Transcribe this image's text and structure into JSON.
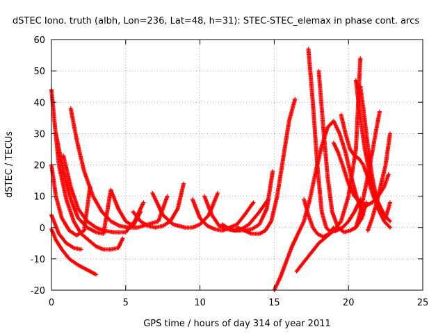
{
  "chart_data": {
    "type": "scatter",
    "title": "dSTEC Iono. truth (albh, Lon=236, Lat=48, h=31): STEC-STEC_elemax in phase cont. arcs",
    "xlabel": "GPS time / hours of day 314 of year 2011",
    "ylabel": "dSTEC  / TECUs",
    "xlim": [
      0,
      25
    ],
    "ylim": [
      -20,
      60
    ],
    "xticks": [
      0,
      5,
      10,
      15,
      20,
      25
    ],
    "yticks": [
      -20,
      -10,
      0,
      10,
      20,
      30,
      40,
      50,
      60
    ],
    "grid": true,
    "marker": "+",
    "color": "#ff0000",
    "series": [
      {
        "x": [
          0.0,
          0.3,
          0.7,
          1.2,
          1.8,
          2.4,
          3.0
        ],
        "y": [
          -0.5,
          -4,
          -7,
          -10,
          -12,
          -13.5,
          -15
        ]
      },
      {
        "x": [
          0.0,
          0.5,
          1.0,
          1.5,
          2.0
        ],
        "y": [
          4,
          -2,
          -5,
          -6.5,
          -7
        ]
      },
      {
        "x": [
          0.0,
          0.2,
          0.5,
          1.0,
          1.5,
          2.0,
          2.5,
          3.0,
          3.5,
          4.0,
          4.5,
          4.8
        ],
        "y": [
          44,
          34,
          20,
          9,
          2,
          -2,
          -4,
          -6,
          -7,
          -7,
          -6.5,
          -3.5
        ]
      },
      {
        "x": [
          0.0,
          0.3,
          0.7,
          1.2,
          1.7,
          2.2,
          2.6
        ],
        "y": [
          20,
          10,
          3,
          -1,
          -2.5,
          -1,
          13
        ]
      },
      {
        "x": [
          0.3,
          0.8,
          1.3,
          1.8,
          2.4,
          3.0,
          3.5,
          4.0
        ],
        "y": [
          30,
          18,
          9,
          3,
          0,
          -1.5,
          -2,
          12
        ]
      },
      {
        "x": [
          0.8,
          1.3,
          1.8,
          2.4,
          3.0,
          3.5,
          4.2,
          5.0,
          5.6,
          6.2
        ],
        "y": [
          23,
          13,
          6,
          2,
          0,
          -1,
          -1.5,
          -1.5,
          2,
          8
        ]
      },
      {
        "x": [
          1.3,
          1.7,
          2.2,
          2.8,
          3.4,
          4.0,
          4.6,
          5.2,
          5.8,
          6.5,
          7.2,
          7.8
        ],
        "y": [
          38,
          28,
          18,
          10,
          5,
          2,
          0.5,
          0,
          0,
          1,
          2,
          10
        ]
      },
      {
        "x": [
          4.0,
          4.5,
          5.0,
          5.5,
          6.0
        ],
        "y": [
          12,
          6,
          2,
          0.5,
          5
        ]
      },
      {
        "x": [
          5.5,
          6.0,
          6.5,
          7.0,
          7.5,
          8.0,
          8.5,
          8.9
        ],
        "y": [
          5,
          2,
          0.5,
          0,
          0.5,
          2,
          6,
          14
        ]
      },
      {
        "x": [
          6.8,
          7.5,
          8.2,
          9.0,
          9.5,
          10.0,
          10.6,
          11.2
        ],
        "y": [
          11,
          4,
          1,
          0,
          0,
          1,
          4,
          11
        ]
      },
      {
        "x": [
          9.5,
          10.0,
          10.5,
          11.0,
          11.5,
          12.0,
          12.5,
          13.0,
          13.6
        ],
        "y": [
          9,
          3,
          0.5,
          -0.5,
          -1,
          0,
          1,
          4,
          8
        ]
      },
      {
        "x": [
          10.3,
          10.8,
          11.3,
          11.8,
          12.3,
          12.8,
          13.3,
          14.0,
          14.6
        ],
        "y": [
          10,
          4,
          0.5,
          -0.5,
          -1,
          -0.5,
          1,
          5,
          9
        ]
      },
      {
        "x": [
          11.5,
          12.0,
          12.5,
          13.0,
          13.5,
          14.0,
          14.5,
          14.9
        ],
        "y": [
          1,
          -0.5,
          -1,
          -0.8,
          -0.5,
          1,
          6,
          18
        ]
      },
      {
        "x": [
          12.5,
          13.0,
          13.5,
          14.0,
          14.4,
          14.8,
          15.2,
          15.6,
          16.0,
          16.4
        ],
        "y": [
          0,
          -1,
          -2,
          -2,
          -1,
          2,
          10,
          22,
          34,
          41
        ]
      },
      {
        "x": [
          15.0,
          15.4,
          15.8,
          16.2,
          16.6,
          17.0,
          17.4,
          17.8,
          18.2,
          18.6,
          19.0,
          19.4,
          19.8,
          20.2,
          20.6,
          21.0
        ],
        "y": [
          -20,
          -16,
          -11,
          -6,
          -2,
          2,
          9,
          18,
          26,
          32,
          34,
          30,
          24,
          16,
          9,
          4
        ]
      },
      {
        "x": [
          16.5,
          17.0,
          17.5,
          18.0,
          18.5,
          19.0,
          19.5,
          20.0,
          20.5,
          20.8
        ],
        "y": [
          -14,
          -11,
          -8,
          -5,
          -3,
          -1,
          2,
          10,
          25,
          54
        ]
      },
      {
        "x": [
          17.0,
          17.3,
          17.6,
          17.9,
          18.3,
          18.7,
          19.0
        ],
        "y": [
          9,
          4,
          0,
          -2,
          -3,
          -2,
          0
        ]
      },
      {
        "x": [
          17.3,
          17.6,
          17.9,
          18.2,
          18.5,
          18.8,
          19.2,
          19.6,
          20.0,
          20.4,
          20.8
        ],
        "y": [
          57,
          40,
          20,
          5,
          0,
          -1.5,
          -1,
          0,
          2,
          5,
          9
        ]
      },
      {
        "x": [
          18.0,
          18.3,
          18.6,
          18.9,
          19.3,
          19.7,
          20.1,
          20.5,
          20.9,
          21.2
        ],
        "y": [
          50,
          32,
          16,
          5,
          0,
          -1.5,
          -1,
          0,
          3,
          8
        ]
      },
      {
        "x": [
          19.0,
          19.3,
          19.6,
          20.0,
          20.4,
          20.8,
          21.2,
          21.6,
          22.0,
          22.4,
          22.7
        ],
        "y": [
          27,
          24,
          20,
          14,
          10,
          8,
          7,
          8,
          10,
          13,
          17
        ]
      },
      {
        "x": [
          19.5,
          19.8,
          20.1,
          20.4,
          20.7,
          21.0,
          21.3,
          21.6,
          22.0,
          22.4,
          22.8
        ],
        "y": [
          36,
          30,
          25,
          23,
          22,
          20,
          16,
          11,
          6,
          2,
          0
        ]
      },
      {
        "x": [
          20.5,
          20.8,
          21.1,
          21.4,
          21.7,
          22.0,
          22.4,
          22.8
        ],
        "y": [
          47,
          35,
          25,
          18,
          12,
          8,
          4,
          2
        ]
      },
      {
        "x": [
          20.8,
          21.0,
          21.3,
          21.6,
          21.9,
          22.2,
          22.5,
          22.8
        ],
        "y": [
          45,
          38,
          26,
          16,
          9,
          5,
          3,
          8
        ]
      },
      {
        "x": [
          20.5,
          20.8,
          21.2,
          21.6,
          21.9,
          22.1
        ],
        "y": [
          0,
          5,
          14,
          24,
          32,
          37
        ]
      },
      {
        "x": [
          21.3,
          21.6,
          21.9,
          22.2,
          22.5,
          22.8
        ],
        "y": [
          -1,
          3,
          8,
          14,
          20,
          30
        ]
      }
    ]
  }
}
